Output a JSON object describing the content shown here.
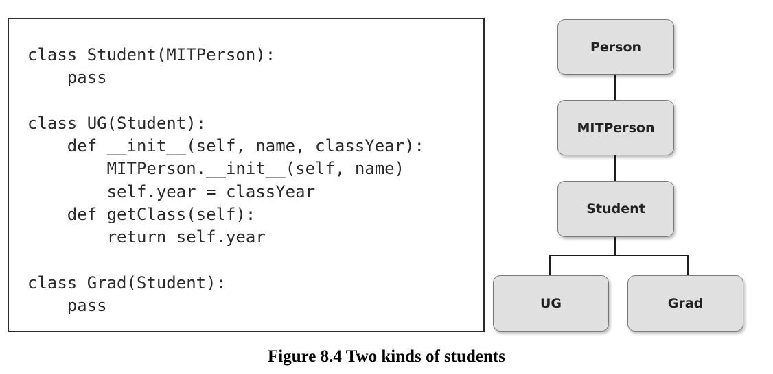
{
  "code": {
    "lines": [
      "class Student(MITPerson):",
      "    pass",
      "",
      "class UG(Student):",
      "    def __init__(self, name, classYear):",
      "        MITPerson.__init__(self, name)",
      "        self.year = classYear",
      "    def getClass(self):",
      "        return self.year",
      "",
      "class Grad(Student):",
      "    pass"
    ]
  },
  "hierarchy": {
    "nodes": {
      "person": "Person",
      "mitperson": "MITPerson",
      "student": "Student",
      "ug": "UG",
      "grad": "Grad"
    }
  },
  "caption": "Figure 8.4 Two kinds of students"
}
